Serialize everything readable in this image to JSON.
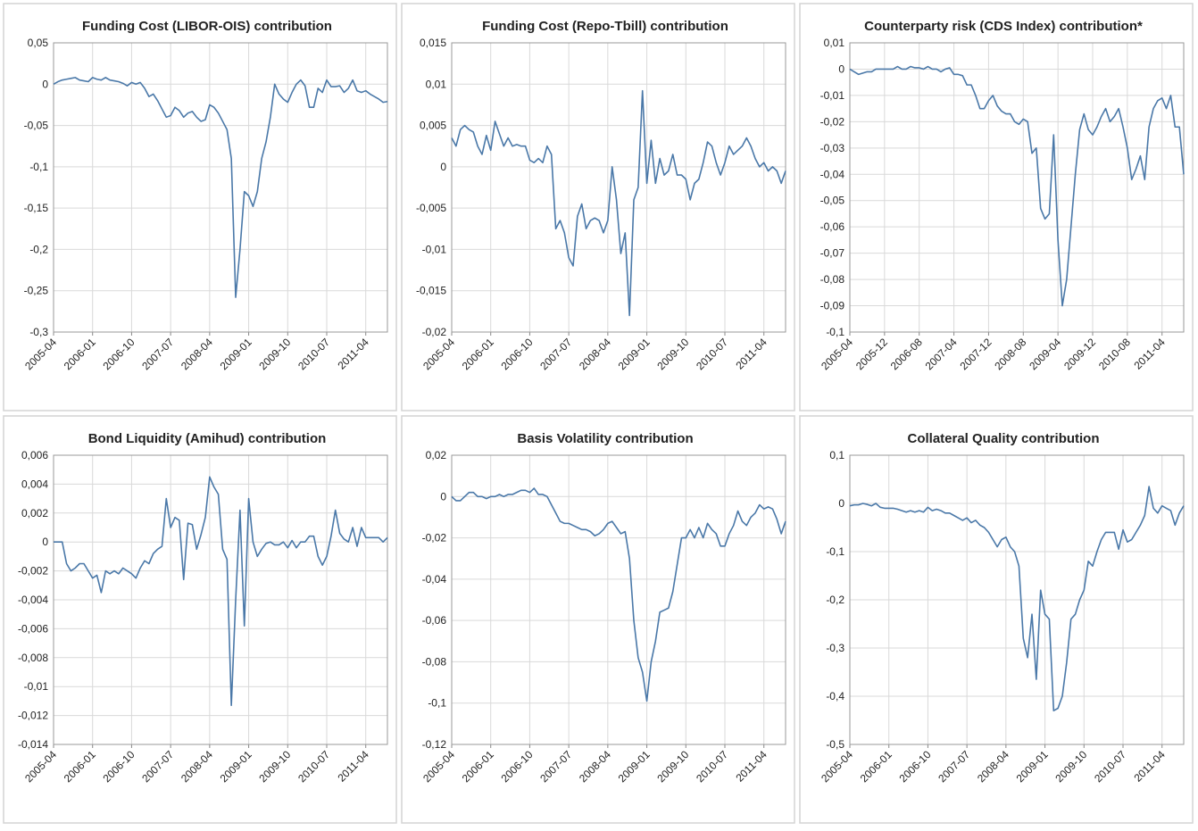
{
  "chart_data": [
    {
      "type": "line",
      "title": "Funding Cost (LIBOR-OIS) contribution",
      "color": "#4a78a8",
      "grid": true,
      "categories": [
        "2005-04",
        null,
        null,
        null,
        null,
        null,
        null,
        null,
        null,
        "2006-01",
        null,
        null,
        null,
        null,
        null,
        null,
        null,
        null,
        "2006-10",
        null,
        null,
        null,
        null,
        null,
        null,
        null,
        null,
        "2007-07",
        null,
        null,
        null,
        null,
        null,
        null,
        null,
        null,
        "2008-04",
        null,
        null,
        null,
        null,
        null,
        null,
        null,
        null,
        "2009-01",
        null,
        null,
        null,
        null,
        null,
        null,
        null,
        null,
        "2009-10",
        null,
        null,
        null,
        null,
        null,
        null,
        null,
        null,
        "2010-07",
        null,
        null,
        null,
        null,
        null,
        null,
        null,
        null,
        "2011-04",
        null,
        null,
        null,
        null,
        null
      ],
      "values": [
        0,
        0.003,
        0.005,
        0.006,
        0.007,
        0.008,
        0.005,
        0.004,
        0.003,
        0.008,
        0.006,
        0.005,
        0.008,
        0.005,
        0.004,
        0.003,
        0.001,
        -0.002,
        0.002,
        0,
        0.002,
        -0.005,
        -0.015,
        -0.012,
        -0.02,
        -0.03,
        -0.04,
        -0.038,
        -0.028,
        -0.032,
        -0.04,
        -0.035,
        -0.033,
        -0.04,
        -0.045,
        -0.043,
        -0.025,
        -0.028,
        -0.035,
        -0.045,
        -0.055,
        -0.09,
        -0.258,
        -0.2,
        -0.13,
        -0.135,
        -0.148,
        -0.13,
        -0.09,
        -0.07,
        -0.04,
        0,
        -0.012,
        -0.018,
        -0.022,
        -0.01,
        0,
        0.005,
        -0.002,
        -0.028,
        -0.028,
        -0.005,
        -0.01,
        0.005,
        -0.003,
        -0.003,
        -0.002,
        -0.01,
        -0.005,
        0.005,
        -0.008,
        -0.01,
        -0.008,
        -0.012,
        -0.015,
        -0.018,
        -0.022,
        -0.021
      ],
      "ylim": [
        -0.3,
        0.05
      ],
      "yticks": [
        {
          "value": 0.05,
          "label": "0,05"
        },
        0,
        {
          "value": -0.05,
          "label": "-0,05"
        },
        {
          "value": -0.1,
          "label": "-0,1"
        },
        {
          "value": -0.15,
          "label": "-0,15"
        },
        {
          "value": -0.2,
          "label": "-0,2"
        },
        {
          "value": -0.25,
          "label": "-0,25"
        },
        {
          "value": -0.3,
          "label": "-0,3"
        }
      ]
    },
    {
      "type": "line",
      "title": "Funding Cost (Repo-Tbill) contribution",
      "color": "#4a78a8",
      "grid": true,
      "categories": [
        "2005-04",
        null,
        null,
        null,
        null,
        null,
        null,
        null,
        null,
        "2006-01",
        null,
        null,
        null,
        null,
        null,
        null,
        null,
        null,
        "2006-10",
        null,
        null,
        null,
        null,
        null,
        null,
        null,
        null,
        "2007-07",
        null,
        null,
        null,
        null,
        null,
        null,
        null,
        null,
        "2008-04",
        null,
        null,
        null,
        null,
        null,
        null,
        null,
        null,
        "2009-01",
        null,
        null,
        null,
        null,
        null,
        null,
        null,
        null,
        "2009-10",
        null,
        null,
        null,
        null,
        null,
        null,
        null,
        null,
        "2010-07",
        null,
        null,
        null,
        null,
        null,
        null,
        null,
        null,
        "2011-04",
        null,
        null,
        null,
        null,
        null
      ],
      "values": [
        0.0035,
        0.0025,
        0.0045,
        0.005,
        0.0045,
        0.0042,
        0.0025,
        0.0015,
        0.0038,
        0.002,
        0.0055,
        0.004,
        0.0025,
        0.0035,
        0.0025,
        0.0027,
        0.0025,
        0.0025,
        0.0008,
        0.0005,
        0.001,
        0.0005,
        0.0025,
        0.0015,
        -0.0075,
        -0.0065,
        -0.008,
        -0.011,
        -0.012,
        -0.006,
        -0.0045,
        -0.0075,
        -0.0065,
        -0.0062,
        -0.0065,
        -0.008,
        -0.0065,
        0,
        -0.004,
        -0.0105,
        -0.008,
        -0.018,
        -0.004,
        -0.0025,
        0.0092,
        -0.002,
        0.0032,
        -0.002,
        0.001,
        -0.001,
        -0.0005,
        0.0015,
        -0.001,
        -0.001,
        -0.0015,
        -0.004,
        -0.002,
        -0.0015,
        0.0005,
        0.003,
        0.0025,
        0.0005,
        -0.001,
        0.0005,
        0.0025,
        0.0015,
        0.002,
        0.0025,
        0.0035,
        0.0025,
        0.001,
        0,
        0.0005,
        -0.0005,
        0,
        -0.0005,
        -0.002,
        -0.0005
      ],
      "ylim": [
        -0.02,
        0.015
      ],
      "yticks": [
        {
          "value": 0.015,
          "label": "0,015"
        },
        {
          "value": 0.01,
          "label": "0,01"
        },
        {
          "value": 0.005,
          "label": "0,005"
        },
        0,
        {
          "value": -0.005,
          "label": "-0,005"
        },
        {
          "value": -0.01,
          "label": "-0,01"
        },
        {
          "value": -0.015,
          "label": "-0,015"
        },
        {
          "value": -0.02,
          "label": "-0,02"
        }
      ]
    },
    {
      "type": "line",
      "title": "Counterparty risk (CDS Index) contribution*",
      "color": "#4a78a8",
      "grid": true,
      "categories": [
        "2005-04",
        null,
        null,
        null,
        null,
        null,
        null,
        null,
        "2005-12",
        null,
        null,
        null,
        null,
        null,
        null,
        null,
        "2006-08",
        null,
        null,
        null,
        null,
        null,
        null,
        null,
        "2007-04",
        null,
        null,
        null,
        null,
        null,
        null,
        null,
        "2007-12",
        null,
        null,
        null,
        null,
        null,
        null,
        null,
        "2008-08",
        null,
        null,
        null,
        null,
        null,
        null,
        null,
        "2009-04",
        null,
        null,
        null,
        null,
        null,
        null,
        null,
        "2009-12",
        null,
        null,
        null,
        null,
        null,
        null,
        null,
        "2010-08",
        null,
        null,
        null,
        null,
        null,
        null,
        null,
        "2011-04",
        null,
        null,
        null,
        null,
        null
      ],
      "values": [
        0,
        -0.001,
        -0.002,
        -0.0015,
        -0.001,
        -0.001,
        0,
        0,
        0,
        0,
        0,
        0.001,
        0,
        0,
        0.001,
        0.0005,
        0.0005,
        0,
        0.001,
        0,
        0,
        -0.001,
        0,
        0.0005,
        -0.002,
        -0.002,
        -0.0025,
        -0.006,
        -0.006,
        -0.01,
        -0.015,
        -0.015,
        -0.012,
        -0.01,
        -0.014,
        -0.016,
        -0.017,
        -0.017,
        -0.02,
        -0.021,
        -0.019,
        -0.02,
        -0.032,
        -0.03,
        -0.053,
        -0.057,
        -0.055,
        -0.025,
        -0.065,
        -0.09,
        -0.08,
        -0.06,
        -0.04,
        -0.023,
        -0.017,
        -0.023,
        -0.025,
        -0.022,
        -0.018,
        -0.015,
        -0.02,
        -0.018,
        -0.015,
        -0.022,
        -0.03,
        -0.042,
        -0.038,
        -0.033,
        -0.042,
        -0.022,
        -0.015,
        -0.012,
        -0.011,
        -0.015,
        -0.01,
        -0.022,
        -0.022,
        -0.04
      ],
      "ylim": [
        -0.1,
        0.01
      ],
      "yticks": [
        {
          "value": 0.01,
          "label": "0,01"
        },
        0,
        {
          "value": -0.01,
          "label": "-0,01"
        },
        {
          "value": -0.02,
          "label": "-0,02"
        },
        {
          "value": -0.03,
          "label": "-0,03"
        },
        {
          "value": -0.04,
          "label": "-0,04"
        },
        {
          "value": -0.05,
          "label": "-0,05"
        },
        {
          "value": -0.06,
          "label": "-0,06"
        },
        {
          "value": -0.07,
          "label": "-0,07"
        },
        {
          "value": -0.08,
          "label": "-0,08"
        },
        {
          "value": -0.09,
          "label": "-0,09"
        },
        {
          "value": -0.1,
          "label": "-0,1"
        }
      ]
    },
    {
      "type": "line",
      "title": "Bond Liquidity (Amihud) contribution",
      "color": "#4a78a8",
      "grid": true,
      "categories": [
        "2005-04",
        null,
        null,
        null,
        null,
        null,
        null,
        null,
        null,
        "2006-01",
        null,
        null,
        null,
        null,
        null,
        null,
        null,
        null,
        "2006-10",
        null,
        null,
        null,
        null,
        null,
        null,
        null,
        null,
        "2007-07",
        null,
        null,
        null,
        null,
        null,
        null,
        null,
        null,
        "2008-04",
        null,
        null,
        null,
        null,
        null,
        null,
        null,
        null,
        "2009-01",
        null,
        null,
        null,
        null,
        null,
        null,
        null,
        null,
        "2009-10",
        null,
        null,
        null,
        null,
        null,
        null,
        null,
        null,
        "2010-07",
        null,
        null,
        null,
        null,
        null,
        null,
        null,
        null,
        "2011-04",
        null,
        null,
        null,
        null,
        null
      ],
      "values": [
        0,
        0,
        0,
        -0.0015,
        -0.002,
        -0.0018,
        -0.0015,
        -0.0015,
        -0.002,
        -0.0025,
        -0.0023,
        -0.0035,
        -0.002,
        -0.0022,
        -0.002,
        -0.0022,
        -0.0018,
        -0.002,
        -0.0022,
        -0.0025,
        -0.0018,
        -0.0013,
        -0.0015,
        -0.0008,
        -0.0005,
        -0.0003,
        0.003,
        0.001,
        0.0017,
        0.0015,
        -0.0026,
        0.0013,
        0.0012,
        -0.0005,
        0.0005,
        0.0017,
        0.0045,
        0.0038,
        0.0033,
        -0.0005,
        -0.0012,
        -0.0113,
        -0.004,
        0.0022,
        -0.0058,
        0.003,
        0,
        -0.001,
        -0.0005,
        -0.0001,
        0,
        -0.0002,
        -0.0002,
        0,
        -0.0004,
        0.0001,
        -0.0004,
        0,
        0,
        0.0004,
        0.0004,
        -0.001,
        -0.0016,
        -0.001,
        0.0004,
        0.0022,
        0.0006,
        0.0002,
        0,
        0.001,
        -0.0003,
        0.001,
        0.0003,
        0.0003,
        0.0003,
        0.0003,
        0,
        0.0003
      ],
      "ylim": [
        -0.014,
        0.006
      ],
      "yticks": [
        {
          "value": 0.006,
          "label": "0,006"
        },
        {
          "value": 0.004,
          "label": "0,004"
        },
        {
          "value": 0.002,
          "label": "0,002"
        },
        0,
        {
          "value": -0.002,
          "label": "-0,002"
        },
        {
          "value": -0.004,
          "label": "-0,004"
        },
        {
          "value": -0.006,
          "label": "-0,006"
        },
        {
          "value": -0.008,
          "label": "-0,008"
        },
        {
          "value": -0.01,
          "label": "-0,01"
        },
        {
          "value": -0.012,
          "label": "-0,012"
        },
        {
          "value": -0.014,
          "label": "-0,014"
        }
      ]
    },
    {
      "type": "line",
      "title": "Basis Volatility contribution",
      "color": "#4a78a8",
      "grid": true,
      "categories": [
        "2005-04",
        null,
        null,
        null,
        null,
        null,
        null,
        null,
        null,
        "2006-01",
        null,
        null,
        null,
        null,
        null,
        null,
        null,
        null,
        "2006-10",
        null,
        null,
        null,
        null,
        null,
        null,
        null,
        null,
        "2007-07",
        null,
        null,
        null,
        null,
        null,
        null,
        null,
        null,
        "2008-04",
        null,
        null,
        null,
        null,
        null,
        null,
        null,
        null,
        "2009-01",
        null,
        null,
        null,
        null,
        null,
        null,
        null,
        null,
        "2009-10",
        null,
        null,
        null,
        null,
        null,
        null,
        null,
        null,
        "2010-07",
        null,
        null,
        null,
        null,
        null,
        null,
        null,
        null,
        "2011-04",
        null,
        null,
        null,
        null,
        null
      ],
      "values": [
        0,
        -0.002,
        -0.002,
        0,
        0.002,
        0.002,
        0,
        0,
        -0.001,
        0,
        0,
        0.001,
        0,
        0.001,
        0.001,
        0.002,
        0.003,
        0.003,
        0.002,
        0.004,
        0.001,
        0.001,
        0,
        -0.004,
        -0.008,
        -0.012,
        -0.013,
        -0.013,
        -0.014,
        -0.015,
        -0.016,
        -0.016,
        -0.017,
        -0.019,
        -0.018,
        -0.016,
        -0.013,
        -0.012,
        -0.015,
        -0.018,
        -0.017,
        -0.03,
        -0.06,
        -0.078,
        -0.085,
        -0.099,
        -0.08,
        -0.07,
        -0.056,
        -0.055,
        -0.054,
        -0.046,
        -0.033,
        -0.02,
        -0.02,
        -0.016,
        -0.02,
        -0.015,
        -0.02,
        -0.013,
        -0.016,
        -0.018,
        -0.024,
        -0.024,
        -0.018,
        -0.014,
        -0.007,
        -0.012,
        -0.014,
        -0.01,
        -0.008,
        -0.004,
        -0.006,
        -0.005,
        -0.006,
        -0.011,
        -0.018,
        -0.012
      ],
      "ylim": [
        -0.12,
        0.02
      ],
      "yticks": [
        {
          "value": 0.02,
          "label": "0,02"
        },
        0,
        {
          "value": -0.02,
          "label": "-0,02"
        },
        {
          "value": -0.04,
          "label": "-0,04"
        },
        {
          "value": -0.06,
          "label": "-0,06"
        },
        {
          "value": -0.08,
          "label": "-0,08"
        },
        {
          "value": -0.1,
          "label": "-0,1"
        },
        {
          "value": -0.12,
          "label": "-0,12"
        }
      ]
    },
    {
      "type": "line",
      "title": "Collateral Quality contribution",
      "color": "#4a78a8",
      "grid": true,
      "categories": [
        "2005-04",
        null,
        null,
        null,
        null,
        null,
        null,
        null,
        null,
        "2006-01",
        null,
        null,
        null,
        null,
        null,
        null,
        null,
        null,
        "2006-10",
        null,
        null,
        null,
        null,
        null,
        null,
        null,
        null,
        "2007-07",
        null,
        null,
        null,
        null,
        null,
        null,
        null,
        null,
        "2008-04",
        null,
        null,
        null,
        null,
        null,
        null,
        null,
        null,
        "2009-01",
        null,
        null,
        null,
        null,
        null,
        null,
        null,
        null,
        "2009-10",
        null,
        null,
        null,
        null,
        null,
        null,
        null,
        null,
        "2010-07",
        null,
        null,
        null,
        null,
        null,
        null,
        null,
        null,
        "2011-04",
        null,
        null,
        null,
        null,
        null
      ],
      "values": [
        -0.005,
        -0.003,
        -0.003,
        0,
        -0.002,
        -0.005,
        0,
        -0.008,
        -0.01,
        -0.01,
        -0.01,
        -0.012,
        -0.015,
        -0.018,
        -0.015,
        -0.018,
        -0.015,
        -0.018,
        -0.008,
        -0.015,
        -0.012,
        -0.015,
        -0.02,
        -0.02,
        -0.025,
        -0.03,
        -0.035,
        -0.03,
        -0.04,
        -0.035,
        -0.045,
        -0.05,
        -0.06,
        -0.075,
        -0.09,
        -0.075,
        -0.07,
        -0.09,
        -0.1,
        -0.13,
        -0.28,
        -0.32,
        -0.23,
        -0.365,
        -0.18,
        -0.23,
        -0.24,
        -0.43,
        -0.425,
        -0.4,
        -0.33,
        -0.24,
        -0.23,
        -0.2,
        -0.18,
        -0.12,
        -0.13,
        -0.1,
        -0.075,
        -0.06,
        -0.06,
        -0.06,
        -0.095,
        -0.055,
        -0.08,
        -0.075,
        -0.06,
        -0.045,
        -0.025,
        0.035,
        -0.01,
        -0.02,
        -0.005,
        -0.01,
        -0.015,
        -0.045,
        -0.02,
        -0.005
      ],
      "ylim": [
        -0.5,
        0.1
      ],
      "yticks": [
        {
          "value": 0.1,
          "label": "0,1"
        },
        0,
        {
          "value": -0.1,
          "label": "-0,1"
        },
        {
          "value": -0.2,
          "label": "-0,2"
        },
        {
          "value": -0.3,
          "label": "-0,3"
        },
        {
          "value": -0.4,
          "label": "-0,4"
        },
        {
          "value": -0.5,
          "label": "-0,5"
        }
      ]
    }
  ]
}
